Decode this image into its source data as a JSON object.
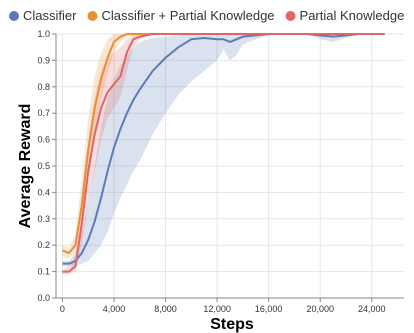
{
  "chart_data": {
    "type": "line",
    "xlabel": "Steps",
    "ylabel": "Average Reward",
    "xlim": [
      -500,
      26500
    ],
    "ylim": [
      0,
      1
    ],
    "x_ticks": [
      0,
      4000,
      8000,
      12000,
      16000,
      20000,
      24000
    ],
    "x_tick_labels": [
      "0",
      "4,000",
      "8,000",
      "12,000",
      "16,000",
      "20,000",
      "24,000"
    ],
    "y_ticks": [
      0,
      0.1,
      0.2,
      0.3,
      0.4,
      0.5,
      0.6,
      0.7,
      0.8,
      0.9,
      1.0
    ],
    "y_tick_labels": [
      "0.0",
      "0.1",
      "0.2",
      "0.3",
      "0.4",
      "0.5",
      "0.6",
      "0.7",
      "0.8",
      "0.9",
      "1.0"
    ],
    "grid": true,
    "legend_position": "top",
    "series": [
      {
        "name": "Classifier",
        "color": "#5b7bb5",
        "x": [
          0,
          500,
          1000,
          1500,
          2000,
          2500,
          3000,
          3500,
          4000,
          4500,
          5000,
          5500,
          6000,
          7000,
          8000,
          9000,
          10000,
          11000,
          12000,
          12500,
          13000,
          13500,
          14000,
          15000,
          16000,
          17000,
          18000,
          19000,
          20000,
          21000,
          22000,
          23000,
          24000,
          25000
        ],
        "y": [
          0.13,
          0.13,
          0.14,
          0.17,
          0.22,
          0.29,
          0.38,
          0.48,
          0.57,
          0.64,
          0.7,
          0.75,
          0.79,
          0.86,
          0.91,
          0.95,
          0.98,
          0.985,
          0.98,
          0.98,
          0.97,
          0.98,
          0.99,
          0.995,
          1.0,
          1.0,
          1.0,
          1.0,
          0.995,
          0.99,
          0.995,
          1.0,
          1.0,
          1.0
        ],
        "lower": [
          0.12,
          0.12,
          0.12,
          0.13,
          0.14,
          0.17,
          0.2,
          0.25,
          0.32,
          0.38,
          0.43,
          0.48,
          0.52,
          0.62,
          0.7,
          0.77,
          0.82,
          0.86,
          0.9,
          0.94,
          0.9,
          0.92,
          0.96,
          0.98,
          0.995,
          1.0,
          1.0,
          1.0,
          0.98,
          0.97,
          0.985,
          1.0,
          1.0,
          1.0
        ],
        "upper": [
          0.14,
          0.14,
          0.17,
          0.25,
          0.36,
          0.5,
          0.65,
          0.76,
          0.83,
          0.88,
          0.92,
          0.95,
          0.97,
          0.985,
          0.99,
          0.995,
          1.0,
          1.0,
          1.0,
          1.0,
          1.0,
          1.0,
          1.0,
          1.0,
          1.0,
          1.0,
          1.0,
          1.0,
          1.0,
          1.0,
          1.0,
          1.0,
          1.0,
          1.0
        ]
      },
      {
        "name": "Classifier + Partial Knowledge",
        "color": "#e69138",
        "x": [
          0,
          500,
          1000,
          1500,
          2000,
          2500,
          3000,
          3500,
          4000,
          4500,
          5000,
          6000,
          8000,
          12000,
          16000,
          20000,
          25000
        ],
        "y": [
          0.18,
          0.17,
          0.2,
          0.35,
          0.56,
          0.72,
          0.83,
          0.91,
          0.97,
          0.99,
          1.0,
          1.0,
          1.0,
          1.0,
          1.0,
          1.0,
          1.0
        ],
        "lower": [
          0.16,
          0.15,
          0.17,
          0.28,
          0.47,
          0.63,
          0.75,
          0.85,
          0.93,
          0.97,
          0.99,
          1.0,
          1.0,
          1.0,
          1.0,
          1.0,
          1.0
        ],
        "upper": [
          0.2,
          0.19,
          0.24,
          0.45,
          0.68,
          0.84,
          0.93,
          0.98,
          1.0,
          1.0,
          1.0,
          1.0,
          1.0,
          1.0,
          1.0,
          1.0,
          1.0
        ]
      },
      {
        "name": "Partial Knowledge",
        "color": "#e06666",
        "x": [
          0,
          500,
          1000,
          1500,
          2000,
          2500,
          3000,
          3500,
          4000,
          4500,
          5000,
          5500,
          6000,
          7000,
          8000,
          12000,
          16000,
          20000,
          25000
        ],
        "y": [
          0.1,
          0.1,
          0.12,
          0.28,
          0.48,
          0.62,
          0.72,
          0.78,
          0.81,
          0.84,
          0.93,
          0.98,
          0.99,
          1.0,
          1.0,
          1.0,
          1.0,
          1.0,
          1.0
        ],
        "lower": [
          0.09,
          0.09,
          0.1,
          0.2,
          0.36,
          0.48,
          0.6,
          0.68,
          0.72,
          0.76,
          0.86,
          0.95,
          0.98,
          1.0,
          1.0,
          1.0,
          1.0,
          1.0,
          1.0
        ],
        "upper": [
          0.11,
          0.12,
          0.16,
          0.4,
          0.6,
          0.76,
          0.86,
          0.91,
          0.93,
          0.95,
          0.98,
          1.0,
          1.0,
          1.0,
          1.0,
          1.0,
          1.0,
          1.0,
          1.0
        ]
      }
    ]
  }
}
